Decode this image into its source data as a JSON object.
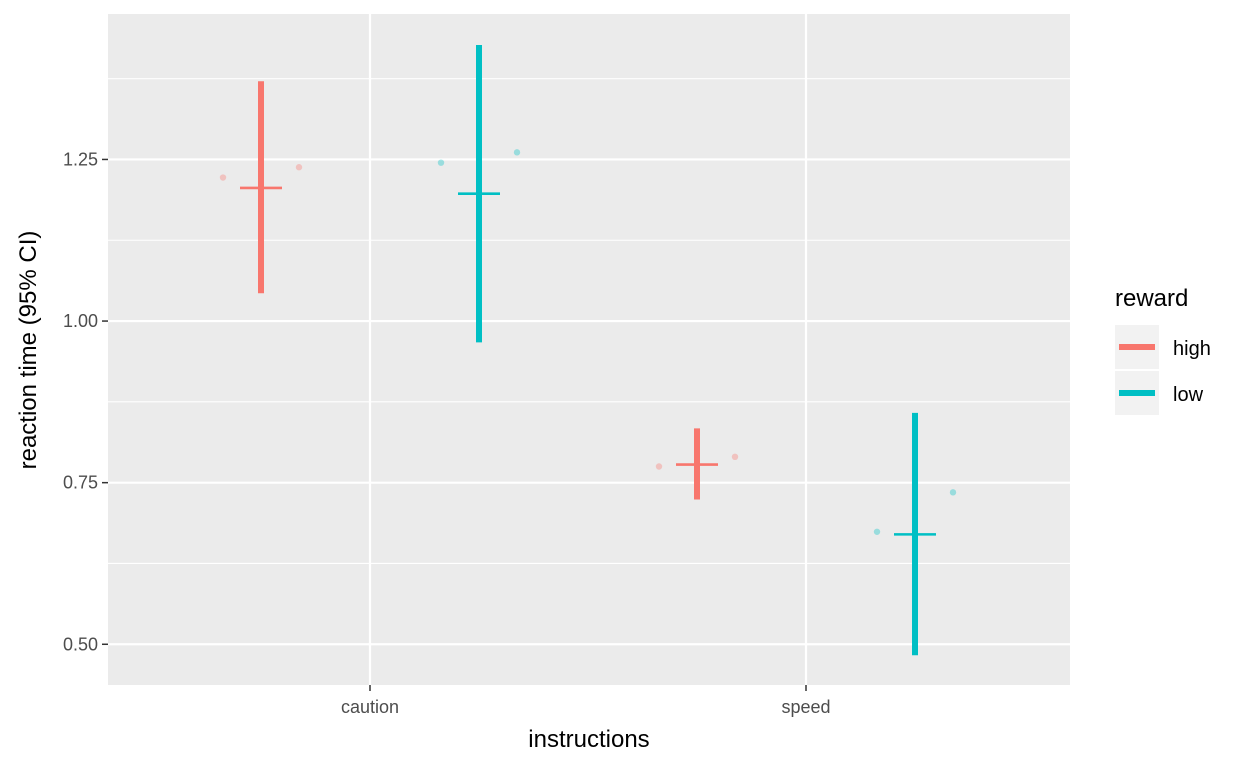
{
  "chart_data": {
    "type": "scatter",
    "xlabel": "instructions",
    "ylabel": "reaction time (95% CI)",
    "categories": [
      "caution",
      "speed"
    ],
    "y_ticks": [
      "0.50",
      "0.75",
      "1.00",
      "1.25"
    ],
    "ylim": [
      0.437,
      1.475
    ],
    "grid": true,
    "legend": {
      "title": "reward",
      "position": "right"
    },
    "series": [
      {
        "name": "high",
        "color": "#F8766D",
        "summary": [
          {
            "x": "caution",
            "mean": 1.206,
            "ci_low": 1.043,
            "ci_high": 1.371
          },
          {
            "x": "speed",
            "mean": 0.778,
            "ci_low": 0.724,
            "ci_high": 0.834
          }
        ],
        "points": [
          {
            "x": "caution",
            "y": 1.222
          },
          {
            "x": "caution",
            "y": 1.238
          },
          {
            "x": "speed",
            "y": 0.775
          },
          {
            "x": "speed",
            "y": 0.79
          }
        ]
      },
      {
        "name": "low",
        "color": "#00BFC4",
        "summary": [
          {
            "x": "caution",
            "mean": 1.197,
            "ci_low": 0.967,
            "ci_high": 1.427
          },
          {
            "x": "speed",
            "mean": 0.67,
            "ci_low": 0.483,
            "ci_high": 0.858
          }
        ],
        "points": [
          {
            "x": "caution",
            "y": 1.245
          },
          {
            "x": "caution",
            "y": 1.261
          },
          {
            "x": "speed",
            "y": 0.674
          },
          {
            "x": "speed",
            "y": 0.735
          }
        ]
      }
    ]
  }
}
